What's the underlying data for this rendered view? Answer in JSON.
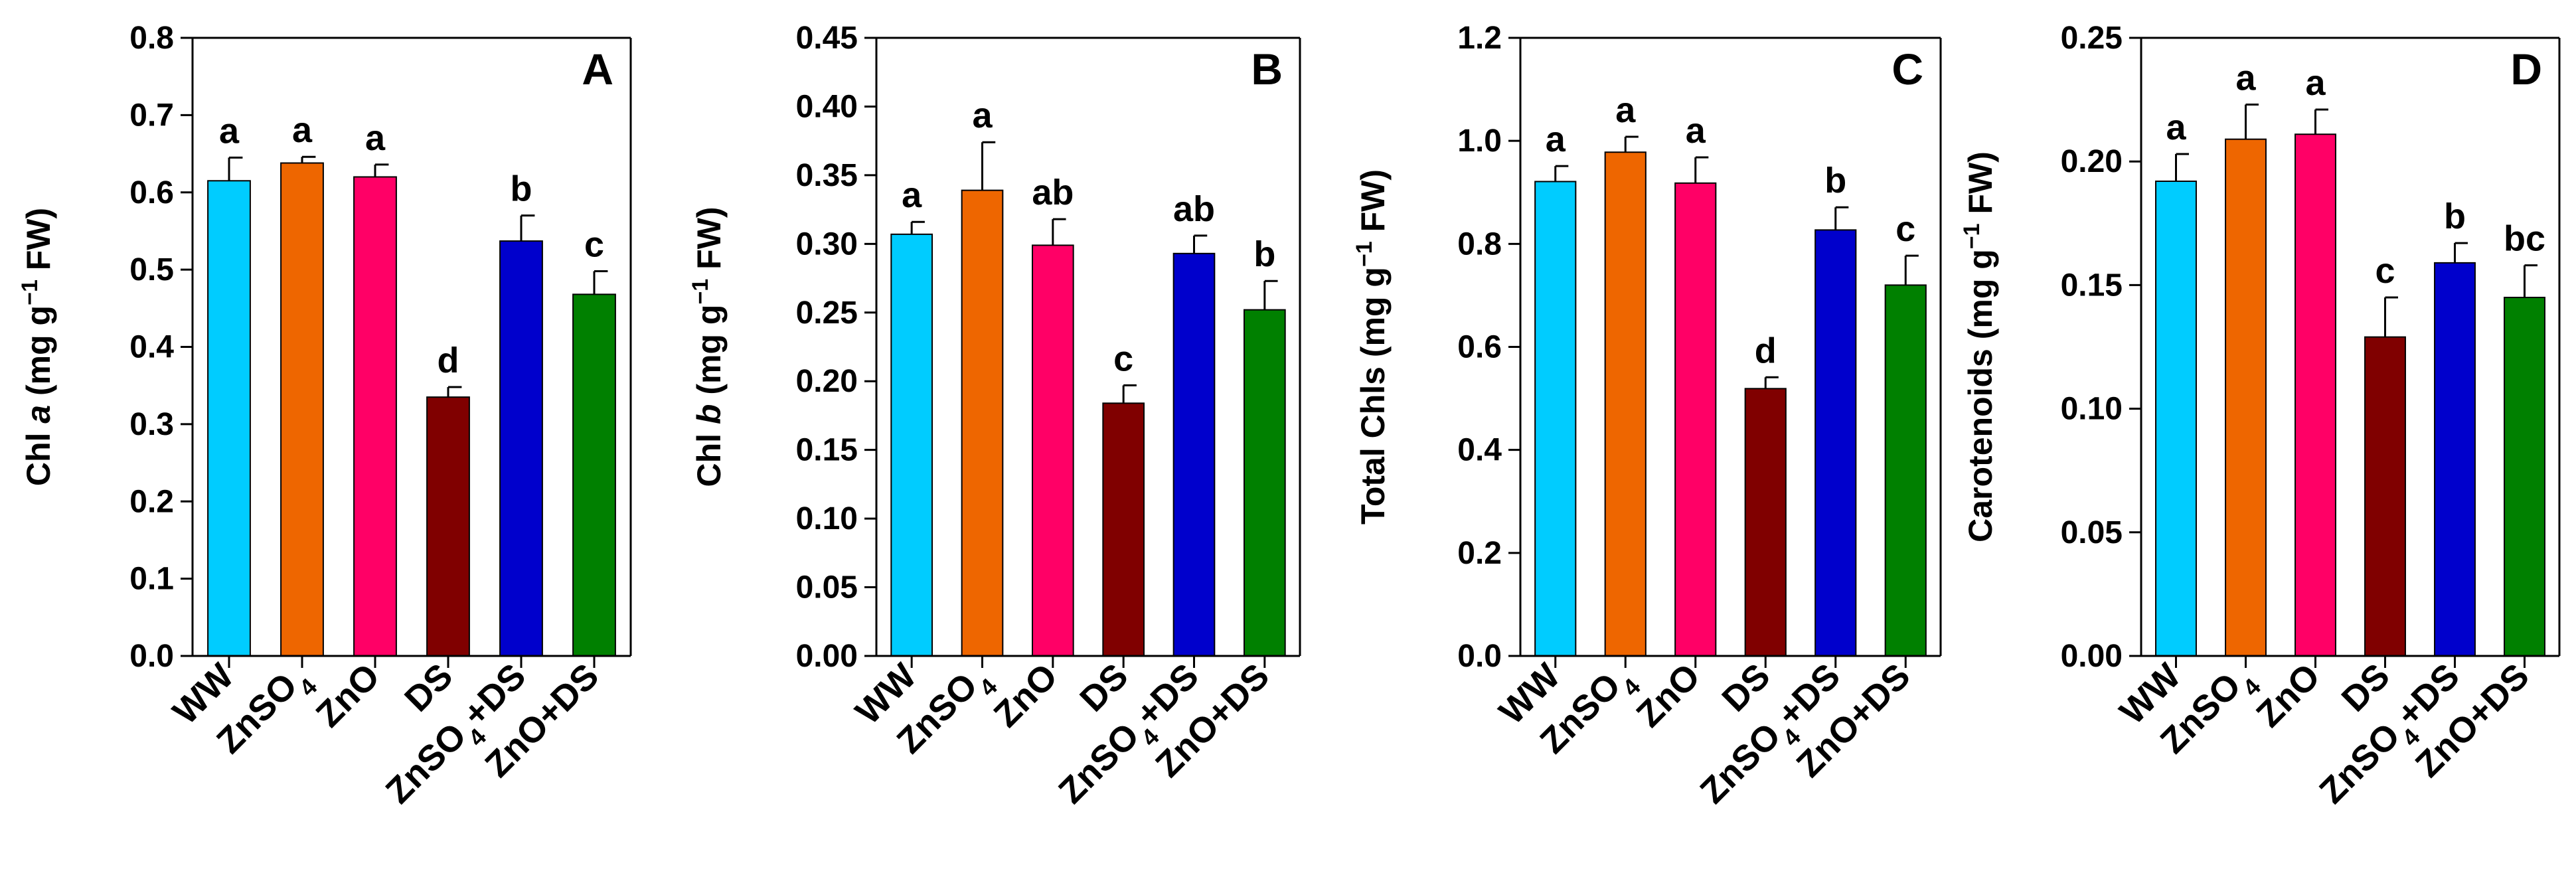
{
  "chart_data": [
    {
      "type": "bar",
      "panel": "A",
      "ylabel": {
        "prefix": "Chl ",
        "italic": "a",
        "suffix": " (mg g",
        "sup": "−1",
        "end": " FW)"
      },
      "ylim": [
        0,
        0.8
      ],
      "yticks": [
        "0.0",
        "0.1",
        "0.2",
        "0.3",
        "0.4",
        "0.5",
        "0.6",
        "0.7",
        "0.8"
      ],
      "categories": [
        "WW",
        "ZnSO4",
        "ZnO",
        "DS",
        "ZnSO4+DS",
        "ZnO+DS"
      ],
      "values": [
        0.615,
        0.638,
        0.62,
        0.335,
        0.537,
        0.468
      ],
      "errors": [
        0.03,
        0.008,
        0.016,
        0.013,
        0.033,
        0.03
      ],
      "letters": [
        "a",
        "a",
        "a",
        "d",
        "b",
        "c"
      ]
    },
    {
      "type": "bar",
      "panel": "B",
      "ylabel": {
        "prefix": "Chl ",
        "italic": "b",
        "suffix": " (mg g",
        "sup": "−1",
        "end": " FW)"
      },
      "ylim": [
        0,
        0.45
      ],
      "yticks": [
        "0.00",
        "0.05",
        "0.10",
        "0.15",
        "0.20",
        "0.25",
        "0.30",
        "0.35",
        "0.40",
        "0.45"
      ],
      "categories": [
        "WW",
        "ZnSO4",
        "ZnO",
        "DS",
        "ZnSO4+DS",
        "ZnO+DS"
      ],
      "values": [
        0.307,
        0.339,
        0.299,
        0.184,
        0.293,
        0.252
      ],
      "errors": [
        0.009,
        0.035,
        0.019,
        0.013,
        0.013,
        0.021
      ],
      "letters": [
        "a",
        "a",
        "ab",
        "c",
        "ab",
        "b"
      ]
    },
    {
      "type": "bar",
      "panel": "C",
      "ylabel": {
        "prefix": "Total Chls (mg g",
        "italic": "",
        "suffix": "",
        "sup": "−1",
        "end": " FW)"
      },
      "ylim": [
        0,
        1.2
      ],
      "yticks": [
        "0.0",
        "0.2",
        "0.4",
        "0.6",
        "0.8",
        "1.0",
        "1.2"
      ],
      "categories": [
        "WW",
        "ZnSO4",
        "ZnO",
        "DS",
        "ZnSO4+DS",
        "ZnO+DS"
      ],
      "values": [
        0.921,
        0.978,
        0.918,
        0.519,
        0.827,
        0.72
      ],
      "errors": [
        0.03,
        0.03,
        0.05,
        0.022,
        0.044,
        0.057
      ],
      "letters": [
        "a",
        "a",
        "a",
        "d",
        "b",
        "c"
      ]
    },
    {
      "type": "bar",
      "panel": "D",
      "ylabel": {
        "prefix": "Carotenoids (mg g",
        "italic": "",
        "suffix": "",
        "sup": "−1",
        "end": " FW)"
      },
      "ylim": [
        0,
        0.25
      ],
      "yticks": [
        "0.00",
        "0.05",
        "0.10",
        "0.15",
        "0.20",
        "0.25"
      ],
      "categories": [
        "WW",
        "ZnSO4",
        "ZnO",
        "DS",
        "ZnSO4+DS",
        "ZnO+DS"
      ],
      "values": [
        0.192,
        0.209,
        0.211,
        0.129,
        0.159,
        0.145
      ],
      "errors": [
        0.011,
        0.014,
        0.01,
        0.016,
        0.008,
        0.013
      ],
      "letters": [
        "a",
        "a",
        "a",
        "c",
        "b",
        "bc"
      ]
    }
  ],
  "colors": [
    "#00CCFF",
    "#EE6600",
    "#FF0066",
    "#800000",
    "#0000CC",
    "#008000"
  ]
}
